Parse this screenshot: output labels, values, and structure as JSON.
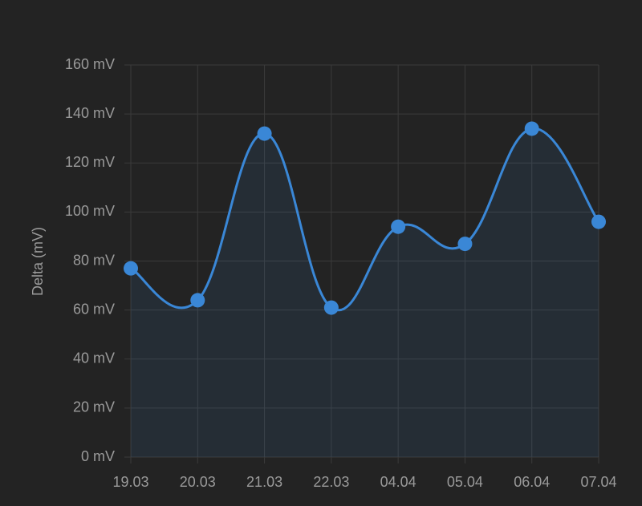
{
  "chart_data": {
    "type": "line",
    "y_label": "Delta (mV)",
    "categories": [
      "19.03",
      "20.03",
      "21.03",
      "22.03",
      "04.04",
      "05.04",
      "06.04",
      "07.04"
    ],
    "values": [
      77,
      64,
      132,
      61,
      94,
      87,
      134,
      96
    ],
    "color": "#3a87d6",
    "fill": true,
    "grid": true,
    "ylim": [
      0,
      160
    ],
    "yticks": [
      {
        "value": 0,
        "label": "0 mV"
      },
      {
        "value": 20,
        "label": "20 mV"
      },
      {
        "value": 40,
        "label": "40 mV"
      },
      {
        "value": 60,
        "label": "60 mV"
      },
      {
        "value": 80,
        "label": "80 mV"
      },
      {
        "value": 100,
        "label": "100 mV"
      },
      {
        "value": 120,
        "label": "120 mV"
      },
      {
        "value": 140,
        "label": "140 mV"
      },
      {
        "value": 160,
        "label": "160 mV"
      }
    ]
  }
}
